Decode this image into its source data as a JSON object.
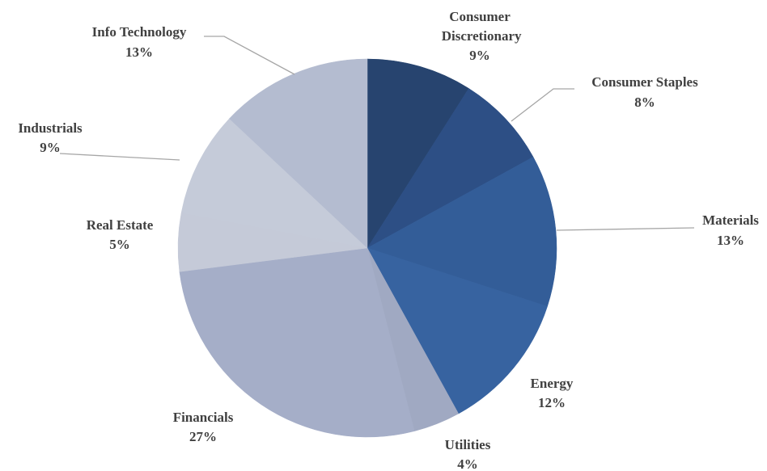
{
  "chart_data": {
    "type": "pie",
    "categories": [
      "Consumer Discretionary",
      "Consumer Staples",
      "Materials",
      "Energy",
      "Utilities",
      "Financials",
      "Real Estate",
      "Industrials",
      "Info Technology"
    ],
    "values": [
      9,
      8,
      13,
      12,
      4,
      27,
      5,
      9,
      13
    ],
    "value_labels": [
      "9%",
      "8%",
      "13%",
      "12%",
      "4%",
      "27%",
      "5%",
      "9%",
      "13%"
    ],
    "colors": [
      "#27446f",
      "#2d4f85",
      "#335d98",
      "#3763a0",
      "#a0a9c2",
      "#a5aec8",
      "#c5cad8",
      "#c5cbd9",
      "#b4bcd0"
    ]
  }
}
